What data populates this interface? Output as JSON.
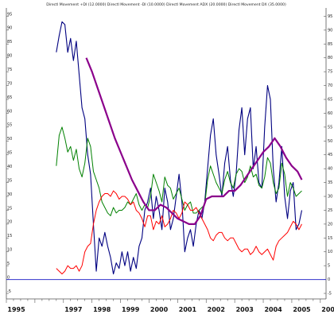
{
  "chart_data": {
    "type": "line",
    "title": "Directl Movement +DI (12.0000) Directl Movement -DI (10.0000) Directl Movement ADX (20.0000) Directl Movement DX (35.0000)",
    "xlabel": "",
    "ylabel": "",
    "x_ticks": [
      "1995",
      "1997",
      "1998",
      "1999",
      "2000",
      "2001",
      "2002",
      "2003",
      "2004",
      "2005",
      "200"
    ],
    "y_ticks": [
      "-5",
      "0",
      "5",
      "10",
      "15",
      "20",
      "25",
      "30",
      "35",
      "40",
      "45",
      "50",
      "55",
      "60",
      "65",
      "70",
      "75",
      "80",
      "85",
      "90",
      "95"
    ],
    "xlim": [
      1995.0,
      2006.2
    ],
    "ylim": [
      -7,
      98
    ],
    "grid": false,
    "reference_line": {
      "y": 0,
      "color": "#3333cc"
    },
    "series": [
      {
        "color": "#000080",
        "width": 1.1,
        "x": [
          1996.75,
          1996.85,
          1996.95,
          1997.05,
          1997.15,
          1997.25,
          1997.35,
          1997.45,
          1997.55,
          1997.65,
          1997.75,
          1997.85,
          1997.95,
          1998.05,
          1998.15,
          1998.25,
          1998.35,
          1998.45,
          1998.55,
          1998.65,
          1998.75,
          1998.85,
          1998.95,
          1999.05,
          1999.15,
          1999.25,
          1999.35,
          1999.45,
          1999.55,
          1999.65,
          1999.75,
          1999.85,
          1999.95,
          2000.05,
          2000.15,
          2000.25,
          2000.35,
          2000.45,
          2000.55,
          2000.65,
          2000.75,
          2000.85,
          2000.95,
          2001.05,
          2001.15,
          2001.25,
          2001.35,
          2001.45,
          2001.55,
          2001.65,
          2001.75,
          2001.85,
          2001.95,
          2002.05,
          2002.15,
          2002.25,
          2002.35,
          2002.45,
          2002.55,
          2002.65,
          2002.75,
          2002.85,
          2002.95,
          2003.05,
          2003.15,
          2003.25,
          2003.35,
          2003.45,
          2003.55,
          2003.65,
          2003.75,
          2003.85,
          2003.95,
          2004.05,
          2004.15,
          2004.25,
          2004.35,
          2004.45,
          2004.55,
          2004.65,
          2004.75,
          2004.85,
          2004.95,
          2005.05,
          2005.15,
          2005.25,
          2005.35
        ],
        "y": [
          82,
          88,
          93,
          92,
          82,
          87,
          79,
          86,
          74,
          62,
          58,
          45,
          38,
          20,
          3,
          15,
          12,
          17,
          12,
          8,
          2,
          6,
          4,
          10,
          5,
          10,
          3,
          8,
          4,
          12,
          15,
          25,
          28,
          33,
          22,
          30,
          25,
          18,
          33,
          28,
          18,
          22,
          30,
          38,
          28,
          10,
          15,
          18,
          12,
          20,
          25,
          22,
          28,
          40,
          52,
          58,
          45,
          38,
          30,
          42,
          48,
          36,
          30,
          38,
          54,
          62,
          45,
          58,
          62,
          40,
          48,
          35,
          33,
          55,
          70,
          65,
          40,
          28,
          35,
          48,
          30,
          22,
          32,
          35,
          18,
          20,
          25
        ]
      },
      {
        "color": "#008000",
        "width": 1.0,
        "x": [
          1996.75,
          1996.85,
          1996.95,
          1997.05,
          1997.15,
          1997.25,
          1997.35,
          1997.45,
          1997.55,
          1997.65,
          1997.75,
          1997.85,
          1997.95,
          1998.05,
          1998.15,
          1998.25,
          1998.35,
          1998.45,
          1998.55,
          1998.65,
          1998.75,
          1998.85,
          1998.95,
          1999.05,
          1999.15,
          1999.25,
          1999.35,
          1999.45,
          1999.55,
          1999.65,
          1999.75,
          1999.85,
          1999.95,
          2000.05,
          2000.15,
          2000.25,
          2000.35,
          2000.45,
          2000.55,
          2000.65,
          2000.75,
          2000.85,
          2000.95,
          2001.05,
          2001.15,
          2001.25,
          2001.35,
          2001.45,
          2001.55,
          2001.65,
          2001.75,
          2001.85,
          2001.95,
          2002.05,
          2002.15,
          2002.25,
          2002.35,
          2002.45,
          2002.55,
          2002.65,
          2002.75,
          2002.85,
          2002.95,
          2003.05,
          2003.15,
          2003.25,
          2003.35,
          2003.45,
          2003.55,
          2003.65,
          2003.75,
          2003.85,
          2003.95,
          2004.05,
          2004.15,
          2004.25,
          2004.35,
          2004.45,
          2004.55,
          2004.65,
          2004.75,
          2004.85,
          2004.95,
          2005.05,
          2005.15,
          2005.25,
          2005.35
        ],
        "y": [
          41,
          52,
          55,
          51,
          46,
          48,
          43,
          47,
          40,
          37,
          42,
          51,
          48,
          39,
          36,
          33,
          28,
          26,
          24,
          23,
          26,
          24,
          25,
          25,
          26,
          28,
          27,
          29,
          31,
          27,
          25,
          27,
          26,
          30,
          38,
          35,
          32,
          28,
          37,
          34,
          33,
          29,
          31,
          33,
          29,
          25,
          27,
          28,
          24,
          24,
          25,
          26,
          27,
          36,
          41,
          38,
          35,
          33,
          31,
          36,
          39,
          35,
          33,
          38,
          40,
          39,
          35,
          37,
          41,
          37,
          38,
          34,
          33,
          37,
          44,
          42,
          35,
          31,
          33,
          42,
          38,
          30,
          35,
          33,
          30,
          31,
          32
        ]
      },
      {
        "color": "#ff0000",
        "width": 1.0,
        "x": [
          1996.75,
          1996.85,
          1996.95,
          1997.05,
          1997.15,
          1997.25,
          1997.35,
          1997.45,
          1997.55,
          1997.65,
          1997.75,
          1997.85,
          1997.95,
          1998.05,
          1998.15,
          1998.25,
          1998.35,
          1998.45,
          1998.55,
          1998.65,
          1998.75,
          1998.85,
          1998.95,
          1999.05,
          1999.15,
          1999.25,
          1999.35,
          1999.45,
          1999.55,
          1999.65,
          1999.75,
          1999.85,
          1999.95,
          2000.05,
          2000.15,
          2000.25,
          2000.35,
          2000.45,
          2000.55,
          2000.65,
          2000.75,
          2000.85,
          2000.95,
          2001.05,
          2001.15,
          2001.25,
          2001.35,
          2001.45,
          2001.55,
          2001.65,
          2001.75,
          2001.85,
          2001.95,
          2002.05,
          2002.15,
          2002.25,
          2002.35,
          2002.45,
          2002.55,
          2002.65,
          2002.75,
          2002.85,
          2002.95,
          2003.05,
          2003.15,
          2003.25,
          2003.35,
          2003.45,
          2003.55,
          2003.65,
          2003.75,
          2003.85,
          2003.95,
          2004.05,
          2004.15,
          2004.25,
          2004.35,
          2004.45,
          2004.55,
          2004.65,
          2004.75,
          2004.85,
          2004.95,
          2005.05,
          2005.15,
          2005.25,
          2005.35
        ],
        "y": [
          4,
          3,
          2,
          3,
          5,
          4,
          4,
          5,
          3,
          5,
          10,
          12,
          13,
          20,
          25,
          28,
          30,
          31,
          31,
          30,
          32,
          31,
          29,
          30,
          30,
          29,
          27,
          28,
          25,
          24,
          22,
          19,
          23,
          23,
          18,
          21,
          20,
          23,
          19,
          20,
          22,
          25,
          24,
          22,
          24,
          28,
          27,
          25,
          25,
          26,
          24,
          22,
          20,
          18,
          15,
          14,
          16,
          17,
          17,
          15,
          14,
          15,
          15,
          13,
          11,
          10,
          11,
          11,
          9,
          10,
          12,
          10,
          9,
          10,
          11,
          9,
          7,
          12,
          14,
          15,
          16,
          17,
          19,
          21,
          20,
          18,
          20
        ]
      },
      {
        "color": "#8b008b",
        "width": 2.2,
        "x": [
          1997.8,
          1998.0,
          1998.2,
          1998.4,
          1998.6,
          1998.8,
          1999.0,
          1999.2,
          1999.4,
          1999.6,
          1999.8,
          2000.0,
          2000.2,
          2000.4,
          2000.6,
          2000.8,
          2001.0,
          2001.2,
          2001.4,
          2001.6,
          2001.8,
          2002.0,
          2002.2,
          2002.4,
          2002.6,
          2002.8,
          2003.0,
          2003.2,
          2003.4,
          2003.6,
          2003.8,
          2004.0,
          2004.2,
          2004.4,
          2004.6,
          2004.8,
          2005.0,
          2005.2,
          2005.35
        ],
        "y": [
          80,
          75,
          69,
          63,
          57,
          51,
          46,
          41,
          36,
          32,
          28,
          25,
          25,
          27,
          26,
          24,
          22,
          21,
          20,
          20,
          23,
          29,
          30,
          30,
          30,
          32,
          32,
          34,
          37,
          40,
          43,
          46,
          48,
          51,
          48,
          44,
          41,
          39,
          36
        ]
      }
    ]
  }
}
